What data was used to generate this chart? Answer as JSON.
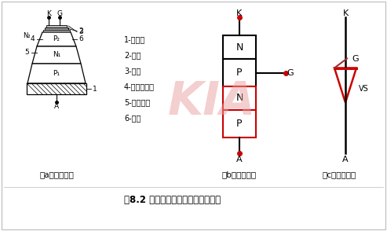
{
  "title": "图8.2 晶闸管的结构示意和表示符号",
  "subtitle_a": "（a）内部结构",
  "subtitle_b": "（b）结构示意",
  "subtitle_c": "（c）表示符号",
  "legend_items": [
    "1-铜底座",
    "2-钼片",
    "3-铝片",
    "4-金钼合金片",
    "5-金铝叠片",
    "6-硅片"
  ],
  "bg_color": "#ffffff",
  "border_color": "#bbbbbb",
  "kia_color": "#e8a0a0",
  "black": "#000000",
  "red": "#cc0000",
  "gray": "#888888"
}
